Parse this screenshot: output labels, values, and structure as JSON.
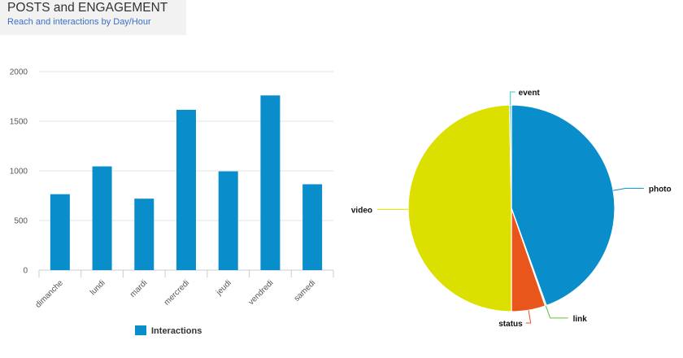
{
  "header": {
    "title": "POSTS and ENGAGEMENT",
    "subtitle": "Reach and interactions by Day/Hour"
  },
  "chart_data": [
    {
      "type": "bar",
      "categories": [
        "dimanche",
        "lundi",
        "mardi",
        "mercredi",
        "jeudi",
        "vendredi",
        "samedi"
      ],
      "series": [
        {
          "name": "Interactions",
          "values": [
            765,
            1045,
            720,
            1615,
            995,
            1760,
            865
          ]
        }
      ],
      "ylim": [
        0,
        2000
      ],
      "yticks": [
        0,
        500,
        1000,
        1500,
        2000
      ],
      "grid": true,
      "legend": "bottom",
      "color": "#0a8dcb"
    },
    {
      "type": "pie",
      "slices": [
        {
          "label": "photo",
          "value": 44.5,
          "color": "#0a8dcb"
        },
        {
          "label": "link",
          "value": 0.2,
          "color": "#5bc33a"
        },
        {
          "label": "status",
          "value": 5.3,
          "color": "#e8561c"
        },
        {
          "label": "video",
          "value": 49.7,
          "color": "#dce000"
        },
        {
          "label": "event",
          "value": 0.3,
          "color": "#3cc7c7"
        }
      ]
    }
  ]
}
